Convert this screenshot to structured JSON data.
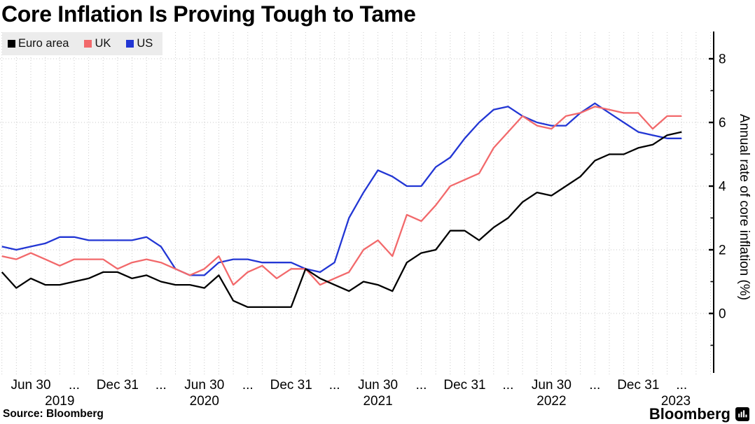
{
  "header": {
    "title": "Core Inflation Is Proving Tough to Tame"
  },
  "footer": {
    "source": "Source: Bloomberg",
    "brand": "Bloomberg"
  },
  "chart_data": {
    "type": "line",
    "title": "Core Inflation Is Proving Tough to Tame",
    "ylabel": "Annual rate of core inflation (%)",
    "ylim": [
      -1.9,
      8.9
    ],
    "grid": "dotted, vertical line per month, horizontal line per labeled tick",
    "legend_position": "top-left",
    "y_axis": {
      "side": "right",
      "major_ticks": [
        8,
        6,
        4,
        2,
        0
      ],
      "minor_ticks": [
        7,
        5,
        3,
        1,
        -1
      ]
    },
    "x_unit": "monthly, month-end points",
    "start_month": "2019-04",
    "end_month": "2023-03",
    "x_axis": {
      "ticks": [
        {
          "label": "Jun 30",
          "m": 2
        },
        {
          "label": "...",
          "m": 5
        },
        {
          "label": "Dec 31",
          "m": 8
        },
        {
          "label": "...",
          "m": 11
        },
        {
          "label": "Jun 30",
          "m": 14
        },
        {
          "label": "...",
          "m": 17
        },
        {
          "label": "Dec 31",
          "m": 20
        },
        {
          "label": "...",
          "m": 23
        },
        {
          "label": "Jun 30",
          "m": 26
        },
        {
          "label": "...",
          "m": 29
        },
        {
          "label": "Dec 31",
          "m": 32
        },
        {
          "label": "...",
          "m": 35
        },
        {
          "label": "Jun 30",
          "m": 38
        },
        {
          "label": "...",
          "m": 41
        },
        {
          "label": "Dec 31",
          "m": 44
        },
        {
          "label": "...",
          "m": 47
        }
      ],
      "years": [
        {
          "label": "2019",
          "m": 4
        },
        {
          "label": "2020",
          "m": 14
        },
        {
          "label": "2021",
          "m": 26
        },
        {
          "label": "2022",
          "m": 38
        },
        {
          "label": "2023",
          "m": 46.6
        }
      ]
    },
    "series": [
      {
        "name": "Euro area",
        "color": "#000000",
        "values": [
          1.3,
          0.8,
          1.1,
          0.9,
          0.9,
          1.0,
          1.1,
          1.3,
          1.3,
          1.1,
          1.2,
          1.0,
          0.9,
          0.9,
          0.8,
          1.2,
          0.4,
          0.2,
          0.2,
          0.2,
          0.2,
          1.4,
          1.1,
          0.9,
          0.7,
          1.0,
          0.9,
          0.7,
          1.6,
          1.9,
          2.0,
          2.6,
          2.6,
          2.3,
          2.7,
          3.0,
          3.5,
          3.8,
          3.7,
          4.0,
          4.3,
          4.8,
          5.0,
          5.0,
          5.2,
          5.3,
          5.6,
          5.7
        ]
      },
      {
        "name": "UK",
        "color": "#f2696b",
        "values": [
          1.8,
          1.7,
          1.9,
          1.7,
          1.5,
          1.7,
          1.7,
          1.7,
          1.4,
          1.6,
          1.7,
          1.6,
          1.4,
          1.2,
          1.4,
          1.8,
          0.9,
          1.3,
          1.5,
          1.1,
          1.4,
          1.4,
          0.9,
          1.1,
          1.3,
          2.0,
          2.3,
          1.8,
          3.1,
          2.9,
          3.4,
          4.0,
          4.2,
          4.4,
          5.2,
          5.7,
          6.2,
          5.9,
          5.8,
          6.2,
          6.3,
          6.5,
          6.4,
          6.3,
          6.3,
          5.8,
          6.2,
          6.2
        ]
      },
      {
        "name": "US",
        "color": "#2236d4",
        "values": [
          2.1,
          2.0,
          2.1,
          2.2,
          2.4,
          2.4,
          2.3,
          2.3,
          2.3,
          2.3,
          2.4,
          2.1,
          1.4,
          1.2,
          1.2,
          1.6,
          1.7,
          1.7,
          1.6,
          1.6,
          1.6,
          1.4,
          1.3,
          1.6,
          3.0,
          3.8,
          4.5,
          4.3,
          4.0,
          4.0,
          4.6,
          4.9,
          5.5,
          6.0,
          6.4,
          6.5,
          6.2,
          6.0,
          5.9,
          5.9,
          6.3,
          6.6,
          6.3,
          6.0,
          5.7,
          5.6,
          5.5,
          5.5
        ]
      }
    ]
  }
}
